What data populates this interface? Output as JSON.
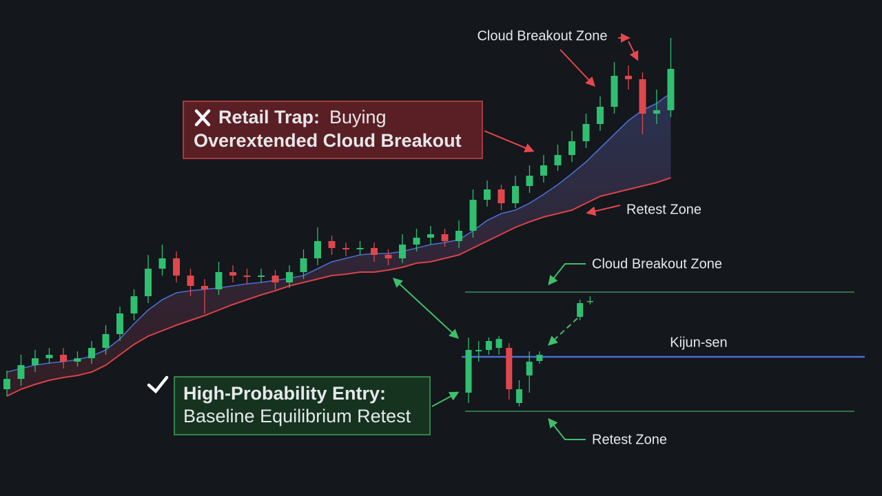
{
  "chart_data": [
    {
      "type": "candlestick",
      "ylim": [
        0,
        720
      ],
      "open": [
        155,
        170,
        190,
        200,
        205,
        195,
        200,
        215,
        235,
        265,
        290,
        330,
        345,
        320,
        305,
        300,
        325,
        320,
        318,
        320,
        310,
        325,
        345,
        370,
        360,
        358,
        360,
        350,
        345,
        365,
        375,
        380,
        370,
        385,
        430,
        445,
        425,
        450,
        465,
        480,
        495,
        515,
        540,
        565,
        610,
        605,
        555,
        560
      ],
      "high": [
        182,
        205,
        212,
        215,
        215,
        210,
        225,
        248,
        275,
        300,
        350,
        365,
        355,
        330,
        315,
        340,
        335,
        330,
        330,
        328,
        335,
        358,
        390,
        378,
        368,
        370,
        368,
        358,
        380,
        388,
        392,
        388,
        400,
        445,
        458,
        452,
        465,
        480,
        495,
        510,
        530,
        555,
        580,
        630,
        625,
        615,
        590,
        665
      ],
      "low": [
        145,
        160,
        180,
        192,
        185,
        188,
        192,
        205,
        225,
        255,
        280,
        320,
        310,
        290,
        265,
        292,
        310,
        308,
        310,
        300,
        302,
        315,
        335,
        350,
        348,
        350,
        340,
        335,
        338,
        355,
        365,
        362,
        360,
        375,
        420,
        415,
        418,
        440,
        455,
        472,
        485,
        505,
        530,
        555,
        590,
        525,
        540,
        550
      ],
      "close": [
        170,
        190,
        200,
        205,
        195,
        200,
        215,
        235,
        265,
        290,
        330,
        345,
        320,
        305,
        300,
        325,
        320,
        318,
        320,
        310,
        325,
        345,
        370,
        360,
        358,
        360,
        350,
        345,
        365,
        375,
        380,
        370,
        385,
        430,
        445,
        425,
        450,
        465,
        480,
        495,
        515,
        540,
        565,
        610,
        605,
        555,
        560,
        620
      ],
      "kijun": [
        180,
        185,
        190,
        193,
        195,
        198,
        203,
        212,
        228,
        250,
        270,
        285,
        295,
        298,
        300,
        302,
        305,
        308,
        310,
        313,
        316,
        320,
        330,
        340,
        345,
        350,
        352,
        352,
        355,
        360,
        365,
        368,
        372,
        385,
        400,
        410,
        415,
        425,
        438,
        452,
        468,
        485,
        505,
        525,
        545,
        560,
        570,
        585
      ],
      "lower": [
        145,
        155,
        162,
        168,
        172,
        175,
        180,
        190,
        205,
        220,
        232,
        240,
        248,
        255,
        262,
        270,
        278,
        285,
        292,
        298,
        305,
        310,
        315,
        320,
        322,
        325,
        325,
        328,
        332,
        338,
        340,
        345,
        350,
        360,
        370,
        380,
        390,
        398,
        405,
        410,
        415,
        425,
        435,
        440,
        445,
        450,
        455,
        462
      ],
      "colors": {
        "up": "#2fbf71",
        "down": "#e0474c",
        "kijun": "#4a6fd1",
        "lower": "#d9434a"
      },
      "annotations": [
        "Cloud Breakout Zone",
        "Retail Trap:",
        "Buying",
        "Overextended Cloud Breakout",
        "Retest Zone",
        "High-Probability Entry:",
        "Baseline Equilibrium Retest"
      ]
    },
    {
      "type": "candlestick",
      "ylim": [
        0,
        720
      ],
      "open": [
        150,
        210,
        212,
        215,
        215,
        135,
        175,
        196,
        null,
        null,
        null,
        260,
        282
      ],
      "high": [
        230,
        225,
        230,
        232,
        222,
        168,
        210,
        210,
        null,
        null,
        null,
        285,
        290
      ],
      "low": [
        135,
        195,
        205,
        205,
        140,
        130,
        150,
        192,
        null,
        null,
        null,
        255,
        278
      ],
      "close": [
        212,
        212,
        225,
        228,
        155,
        155,
        195,
        205,
        null,
        null,
        null,
        280,
        283
      ],
      "kijun_level": 202,
      "breakout_level": 296,
      "retest_level": 123,
      "colors": {
        "up": "#2fbf71",
        "down": "#e0474c",
        "kijun": "#4a6fd1",
        "levels": "#3f8f55"
      },
      "annotations": [
        "Cloud Breakout Zone",
        "Kijun-sen",
        "Retest Zone"
      ]
    }
  ]
}
